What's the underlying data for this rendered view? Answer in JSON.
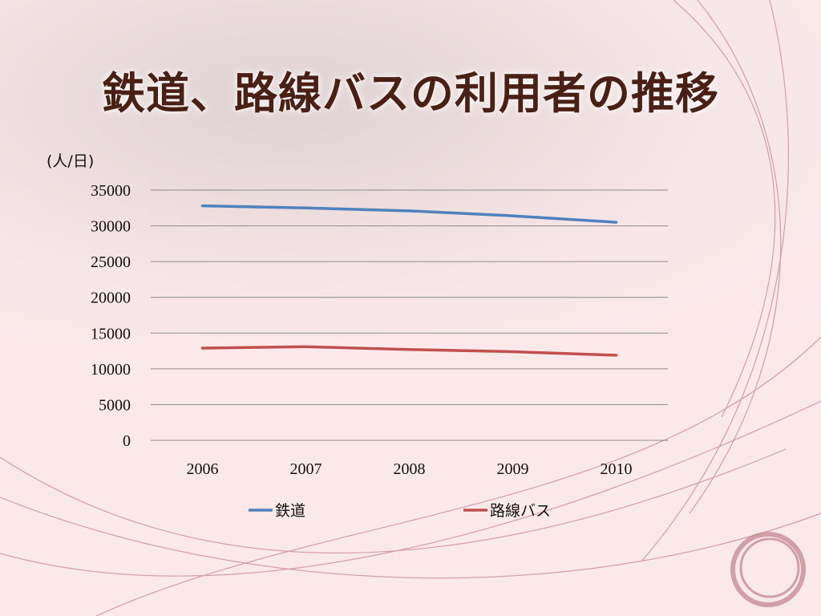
{
  "slide": {
    "title": "鉄道、路線バスの利用者の推移",
    "unit": "(人/日)"
  },
  "chart_data": {
    "type": "line",
    "categories": [
      "2006",
      "2007",
      "2008",
      "2009",
      "2010"
    ],
    "series": [
      {
        "name": "鉄道",
        "values": [
          32800,
          32500,
          32100,
          31400,
          30500
        ],
        "color": "#4f81bd"
      },
      {
        "name": "路線バス",
        "values": [
          12900,
          13100,
          12700,
          12400,
          11900
        ],
        "color": "#c0504d"
      }
    ],
    "yticks": [
      "0",
      "5000",
      "10000",
      "15000",
      "20000",
      "25000",
      "30000",
      "35000"
    ],
    "ylim": [
      0,
      35000
    ],
    "grid": true,
    "legend": "bottom"
  }
}
